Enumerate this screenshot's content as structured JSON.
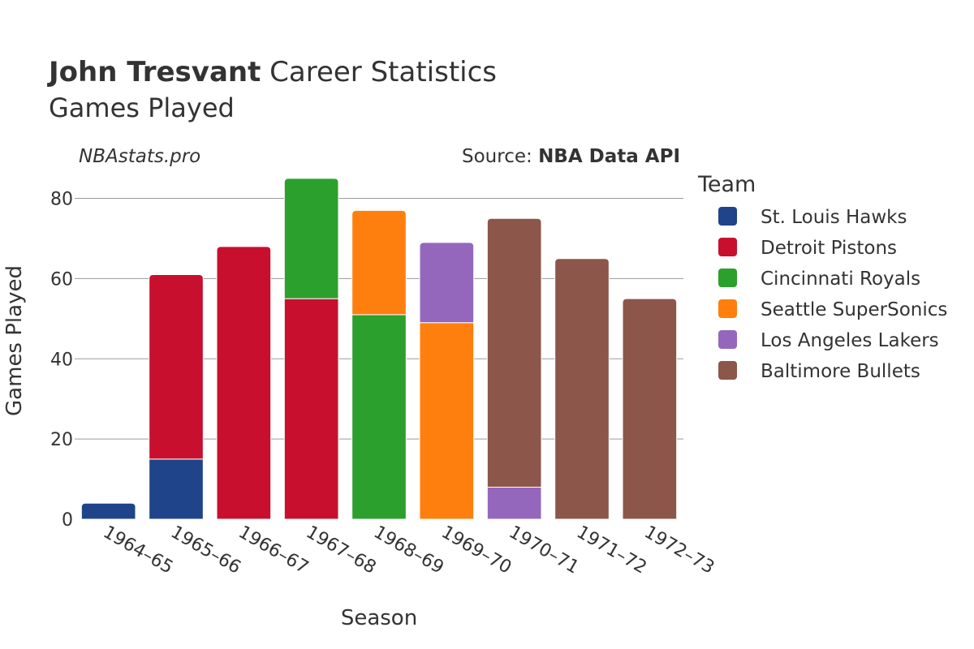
{
  "header": {
    "title_bold": "John Tresvant",
    "title_rest": " Career Statistics",
    "subtitle": "Games Played"
  },
  "credit": "NBAstats.pro",
  "source": {
    "prefix": "Source: ",
    "name": "NBA Data API"
  },
  "chart_data": {
    "type": "bar",
    "stacked": true,
    "xlabel": "Season",
    "ylabel": "Games Played",
    "ylim": [
      0,
      88
    ],
    "yticks": [
      0,
      20,
      40,
      60,
      80
    ],
    "grid": true,
    "legend_title": "Team",
    "legend_position": "right",
    "categories": [
      "1964–65",
      "1965–66",
      "1966–67",
      "1967–68",
      "1968–69",
      "1969–70",
      "1970–71",
      "1971–72",
      "1972–73"
    ],
    "series": [
      {
        "name": "St. Louis Hawks",
        "color": "#1f4489",
        "values": [
          4,
          15,
          0,
          0,
          0,
          0,
          0,
          0,
          0
        ]
      },
      {
        "name": "Detroit Pistons",
        "color": "#c8102e",
        "values": [
          0,
          46,
          68,
          55,
          0,
          0,
          0,
          0,
          0
        ]
      },
      {
        "name": "Cincinnati Royals",
        "color": "#2ca02c",
        "values": [
          0,
          0,
          0,
          30,
          51,
          0,
          0,
          0,
          0
        ]
      },
      {
        "name": "Seattle SuperSonics",
        "color": "#ff7f0e",
        "values": [
          0,
          0,
          0,
          0,
          26,
          49,
          0,
          0,
          0
        ]
      },
      {
        "name": "Los Angeles Lakers",
        "color": "#9467bd",
        "values": [
          0,
          0,
          0,
          0,
          0,
          20,
          8,
          0,
          0
        ]
      },
      {
        "name": "Baltimore Bullets",
        "color": "#8c564b",
        "values": [
          0,
          0,
          0,
          0,
          0,
          0,
          67,
          65,
          55
        ]
      }
    ],
    "stack_order": [
      [
        "St. Louis Hawks"
      ],
      [
        "St. Louis Hawks",
        "Detroit Pistons"
      ],
      [
        "Detroit Pistons"
      ],
      [
        "Detroit Pistons",
        "Cincinnati Royals"
      ],
      [
        "Cincinnati Royals",
        "Seattle SuperSonics"
      ],
      [
        "Seattle SuperSonics",
        "Los Angeles Lakers"
      ],
      [
        "Los Angeles Lakers",
        "Baltimore Bullets"
      ],
      [
        "Baltimore Bullets"
      ],
      [
        "Baltimore Bullets"
      ]
    ]
  }
}
